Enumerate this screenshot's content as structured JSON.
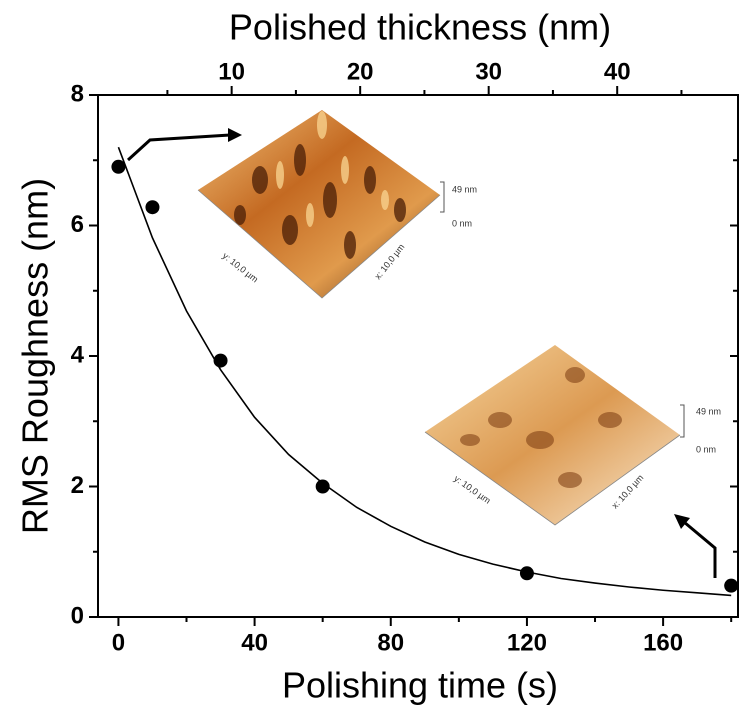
{
  "chart_data": {
    "type": "scatter",
    "x_label": "Polishing time (s)",
    "y_label": "RMS Roughness (nm)",
    "x2_label": "Polished thickness (nm)",
    "xlim": [
      -6,
      182
    ],
    "xticks": [
      0,
      40,
      80,
      120,
      160
    ],
    "xminorticks": [
      20,
      60,
      100,
      140,
      180
    ],
    "x2lim": [
      -0.4,
      49.4
    ],
    "x2ticks": [
      10,
      20,
      30,
      40
    ],
    "x2minorticks": [
      5,
      15,
      25,
      35,
      45
    ],
    "ylim": [
      0,
      8
    ],
    "yticks": [
      0,
      2,
      4,
      6,
      8
    ],
    "yminorticks": [
      1,
      3,
      5,
      7
    ],
    "color": "#000000",
    "series": [
      {
        "x": [
          0,
          10,
          30,
          60,
          120,
          180
        ],
        "values": [
          6.9,
          6.28,
          3.93,
          2.0,
          0.67,
          0.48
        ]
      }
    ],
    "fit": {
      "x": [
        0,
        10,
        20,
        30,
        40,
        50,
        60,
        70,
        80,
        90,
        100,
        110,
        120,
        130,
        140,
        150,
        160,
        170,
        180
      ],
      "values": [
        7.2,
        5.81,
        4.69,
        3.79,
        3.06,
        2.49,
        2.05,
        1.68,
        1.39,
        1.15,
        0.96,
        0.81,
        0.69,
        0.59,
        0.52,
        0.46,
        0.41,
        0.37,
        0.33
      ]
    },
    "insets": [
      {
        "scale_max": "49 nm",
        "scale_min": "0 nm",
        "y_axis": "y: 10,0 µm",
        "x_axis": "x: 10,0 µm"
      },
      {
        "scale_max": "49 nm",
        "scale_min": "0 nm",
        "y_axis": "y: 10,0 µm",
        "x_axis": "x: 10,0 µm"
      }
    ]
  }
}
